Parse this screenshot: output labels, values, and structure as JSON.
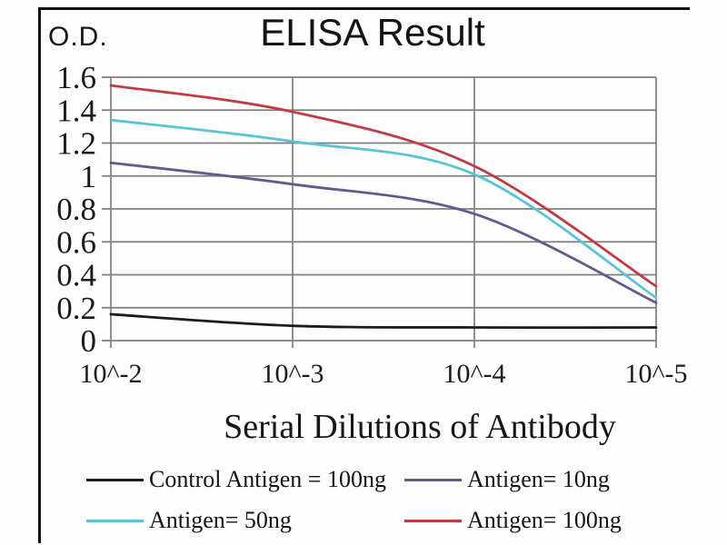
{
  "header": {
    "y_unit_label": "O.D."
  },
  "chart_data": {
    "type": "line",
    "title": "ELISA Result",
    "xlabel": "Serial Dilutions of Antibody",
    "ylabel": "O.D.",
    "categories": [
      "10^-2",
      "10^-3",
      "10^-4",
      "10^-5"
    ],
    "ylim": [
      0,
      1.6
    ],
    "ytick_step": 0.2,
    "grid": true,
    "smooth": true,
    "legend_position": "bottom",
    "series": [
      {
        "name": "Control Antigen = 100ng",
        "color": "#1c1c1c",
        "values": [
          0.16,
          0.09,
          0.08,
          0.08
        ]
      },
      {
        "name": "Antigen= 10ng",
        "color": "#67588f",
        "values": [
          1.08,
          0.95,
          0.77,
          0.23
        ]
      },
      {
        "name": "Antigen= 50ng",
        "color": "#58c5d6",
        "values": [
          1.34,
          1.21,
          1.01,
          0.26
        ]
      },
      {
        "name": "Antigen= 100ng",
        "color": "#c23a43",
        "values": [
          1.55,
          1.39,
          1.06,
          0.33
        ]
      }
    ]
  },
  "colors": {
    "grid": "#7e7e7e",
    "tick_text": "#1b1b1b",
    "frame_border": "#121212",
    "background": "#fdfdfd"
  }
}
